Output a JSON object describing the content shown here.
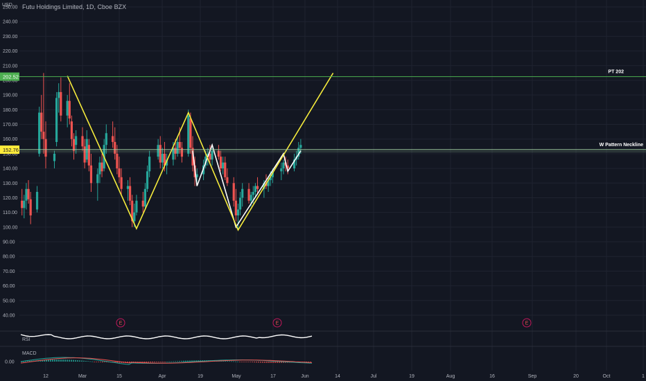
{
  "header": {
    "currency": "USD",
    "title": "Futu Holdings Limited, 1D, Cboe BZX"
  },
  "price_axis": {
    "ticks": [
      "250.00",
      "240.00",
      "230.00",
      "220.00",
      "210.00",
      "200.00",
      "190.00",
      "180.00",
      "170.00",
      "160.00",
      "150.00",
      "140.00",
      "130.00",
      "120.00",
      "110.00",
      "100.00",
      "90.00",
      "80.00",
      "70.00",
      "60.00",
      "50.00",
      "40.00"
    ],
    "tag_pt": "202.52",
    "tag_neckline": "152.76",
    "macd_tick": "0.00"
  },
  "time_axis": {
    "labels": [
      "12",
      "Mar",
      "15",
      "Apr",
      "19",
      "May",
      "17",
      "Jun",
      "14",
      "Jul",
      "19",
      "Aug",
      "16",
      "Sep",
      "20",
      "Oct",
      "1"
    ]
  },
  "annotations": {
    "pt_label": "PT 202",
    "neckline_label": "W Pattern Neckline",
    "earnings_marker": "E"
  },
  "indicators": {
    "rsi_label": "RSI",
    "macd_label": "MACD"
  },
  "colors": {
    "background": "#131722",
    "grid": "#1f2330",
    "up": "#26a69a",
    "down": "#ef5350",
    "pattern_yellow": "#f5eb3c",
    "pattern_white": "#ffffff",
    "pt_line": "#4caf50",
    "neckline_line": "#a5d6a7"
  },
  "chart_data": {
    "type": "candlestick",
    "symbol": "Futu Holdings Limited",
    "interval": "1D",
    "exchange": "Cboe BZX",
    "y_range": [
      35,
      252
    ],
    "price_target": 202.52,
    "neckline": 152.76,
    "w_pattern_points": [
      {
        "date": "2021-02-22",
        "price": 203
      },
      {
        "date": "2021-03-26",
        "price": 99
      },
      {
        "date": "2021-04-19",
        "price": 178
      },
      {
        "date": "2021-05-12",
        "price": 98
      },
      {
        "date": "2021-06-25",
        "price": 205
      }
    ],
    "inner_pattern_points": [
      {
        "date": "2021-04-21",
        "price": 152
      },
      {
        "date": "2021-04-23",
        "price": 128
      },
      {
        "date": "2021-04-30",
        "price": 156
      },
      {
        "date": "2021-05-11",
        "price": 100
      },
      {
        "date": "2021-06-02",
        "price": 150
      },
      {
        "date": "2021-06-04",
        "price": 138
      },
      {
        "date": "2021-06-10",
        "price": 152
      }
    ],
    "candles": [
      {
        "date": "2021-02-01",
        "o": 118,
        "h": 126,
        "l": 108,
        "c": 113
      },
      {
        "date": "2021-02-02",
        "o": 113,
        "h": 122,
        "l": 106,
        "c": 118
      },
      {
        "date": "2021-02-03",
        "o": 118,
        "h": 130,
        "l": 112,
        "c": 126
      },
      {
        "date": "2021-02-04",
        "o": 126,
        "h": 132,
        "l": 116,
        "c": 119
      },
      {
        "date": "2021-02-05",
        "o": 119,
        "h": 124,
        "l": 102,
        "c": 108
      },
      {
        "date": "2021-02-08",
        "o": 112,
        "h": 128,
        "l": 110,
        "c": 124
      },
      {
        "date": "2021-02-09",
        "o": 150,
        "h": 182,
        "l": 148,
        "c": 178
      },
      {
        "date": "2021-02-10",
        "o": 178,
        "h": 190,
        "l": 160,
        "c": 165
      },
      {
        "date": "2021-02-11",
        "o": 165,
        "h": 205,
        "l": 150,
        "c": 160
      },
      {
        "date": "2021-02-12",
        "o": 160,
        "h": 172,
        "l": 140,
        "c": 148
      },
      {
        "date": "2021-02-16",
        "o": 145,
        "h": 152,
        "l": 140,
        "c": 150
      },
      {
        "date": "2021-02-17",
        "o": 158,
        "h": 192,
        "l": 155,
        "c": 188
      },
      {
        "date": "2021-02-18",
        "o": 188,
        "h": 198,
        "l": 178,
        "c": 192
      },
      {
        "date": "2021-02-19",
        "o": 192,
        "h": 202,
        "l": 172,
        "c": 176
      },
      {
        "date": "2021-02-22",
        "o": 176,
        "h": 190,
        "l": 168,
        "c": 186
      },
      {
        "date": "2021-02-23",
        "o": 186,
        "h": 198,
        "l": 170,
        "c": 174
      },
      {
        "date": "2021-02-24",
        "o": 172,
        "h": 176,
        "l": 155,
        "c": 160
      },
      {
        "date": "2021-02-25",
        "o": 160,
        "h": 164,
        "l": 146,
        "c": 152
      },
      {
        "date": "2021-02-26",
        "o": 156,
        "h": 166,
        "l": 150,
        "c": 162
      },
      {
        "date": "2021-03-01",
        "o": 162,
        "h": 168,
        "l": 152,
        "c": 155
      },
      {
        "date": "2021-03-02",
        "o": 155,
        "h": 160,
        "l": 140,
        "c": 144
      },
      {
        "date": "2021-03-03",
        "o": 146,
        "h": 166,
        "l": 144,
        "c": 160
      },
      {
        "date": "2021-03-04",
        "o": 156,
        "h": 160,
        "l": 138,
        "c": 142
      },
      {
        "date": "2021-03-05",
        "o": 142,
        "h": 150,
        "l": 124,
        "c": 130
      },
      {
        "date": "2021-03-08",
        "o": 130,
        "h": 140,
        "l": 118,
        "c": 136
      },
      {
        "date": "2021-03-09",
        "o": 136,
        "h": 148,
        "l": 130,
        "c": 144
      },
      {
        "date": "2021-03-10",
        "o": 144,
        "h": 150,
        "l": 134,
        "c": 138
      },
      {
        "date": "2021-03-11",
        "o": 140,
        "h": 160,
        "l": 138,
        "c": 156
      },
      {
        "date": "2021-03-12",
        "o": 156,
        "h": 170,
        "l": 150,
        "c": 164
      },
      {
        "date": "2021-03-15",
        "o": 162,
        "h": 172,
        "l": 154,
        "c": 158
      },
      {
        "date": "2021-03-16",
        "o": 158,
        "h": 168,
        "l": 146,
        "c": 150
      },
      {
        "date": "2021-03-17",
        "o": 150,
        "h": 156,
        "l": 136,
        "c": 140
      },
      {
        "date": "2021-03-18",
        "o": 140,
        "h": 148,
        "l": 130,
        "c": 134
      },
      {
        "date": "2021-03-19",
        "o": 134,
        "h": 140,
        "l": 122,
        "c": 126
      },
      {
        "date": "2021-03-22",
        "o": 126,
        "h": 132,
        "l": 118,
        "c": 128
      },
      {
        "date": "2021-03-23",
        "o": 128,
        "h": 134,
        "l": 115,
        "c": 118
      },
      {
        "date": "2021-03-24",
        "o": 118,
        "h": 122,
        "l": 100,
        "c": 104
      },
      {
        "date": "2021-03-25",
        "o": 104,
        "h": 116,
        "l": 100,
        "c": 110
      },
      {
        "date": "2021-03-26",
        "o": 110,
        "h": 122,
        "l": 108,
        "c": 118
      },
      {
        "date": "2021-03-29",
        "o": 118,
        "h": 124,
        "l": 110,
        "c": 114
      },
      {
        "date": "2021-03-30",
        "o": 114,
        "h": 130,
        "l": 112,
        "c": 126
      },
      {
        "date": "2021-03-31",
        "o": 126,
        "h": 142,
        "l": 124,
        "c": 138
      },
      {
        "date": "2021-04-01",
        "o": 138,
        "h": 152,
        "l": 134,
        "c": 148
      },
      {
        "date": "2021-04-05",
        "o": 148,
        "h": 160,
        "l": 146,
        "c": 156
      },
      {
        "date": "2021-04-06",
        "o": 156,
        "h": 162,
        "l": 140,
        "c": 144
      },
      {
        "date": "2021-04-07",
        "o": 144,
        "h": 154,
        "l": 140,
        "c": 150
      },
      {
        "date": "2021-04-08",
        "o": 150,
        "h": 158,
        "l": 138,
        "c": 142
      },
      {
        "date": "2021-04-09",
        "o": 142,
        "h": 150,
        "l": 136,
        "c": 146
      },
      {
        "date": "2021-04-12",
        "o": 146,
        "h": 158,
        "l": 142,
        "c": 154
      },
      {
        "date": "2021-04-13",
        "o": 154,
        "h": 160,
        "l": 146,
        "c": 150
      },
      {
        "date": "2021-04-14",
        "o": 150,
        "h": 162,
        "l": 148,
        "c": 158
      },
      {
        "date": "2021-04-15",
        "o": 158,
        "h": 168,
        "l": 150,
        "c": 154
      },
      {
        "date": "2021-04-16",
        "o": 154,
        "h": 158,
        "l": 144,
        "c": 148
      },
      {
        "date": "2021-04-19",
        "o": 150,
        "h": 180,
        "l": 148,
        "c": 176
      },
      {
        "date": "2021-04-20",
        "o": 174,
        "h": 178,
        "l": 150,
        "c": 154
      },
      {
        "date": "2021-04-21",
        "o": 154,
        "h": 162,
        "l": 138,
        "c": 142
      },
      {
        "date": "2021-04-22",
        "o": 142,
        "h": 148,
        "l": 128,
        "c": 134
      },
      {
        "date": "2021-04-23",
        "o": 134,
        "h": 140,
        "l": 130,
        "c": 136
      },
      {
        "date": "2021-04-26",
        "o": 136,
        "h": 146,
        "l": 132,
        "c": 142
      },
      {
        "date": "2021-04-27",
        "o": 142,
        "h": 152,
        "l": 140,
        "c": 148
      },
      {
        "date": "2021-04-28",
        "o": 148,
        "h": 154,
        "l": 142,
        "c": 150
      },
      {
        "date": "2021-04-29",
        "o": 150,
        "h": 156,
        "l": 144,
        "c": 146
      },
      {
        "date": "2021-04-30",
        "o": 146,
        "h": 154,
        "l": 142,
        "c": 152
      },
      {
        "date": "2021-05-03",
        "o": 152,
        "h": 156,
        "l": 146,
        "c": 148
      },
      {
        "date": "2021-05-04",
        "o": 148,
        "h": 152,
        "l": 138,
        "c": 140
      },
      {
        "date": "2021-05-05",
        "o": 140,
        "h": 148,
        "l": 136,
        "c": 144
      },
      {
        "date": "2021-05-06",
        "o": 144,
        "h": 148,
        "l": 132,
        "c": 134
      },
      {
        "date": "2021-05-07",
        "o": 134,
        "h": 140,
        "l": 128,
        "c": 130
      },
      {
        "date": "2021-05-10",
        "o": 130,
        "h": 134,
        "l": 114,
        "c": 118
      },
      {
        "date": "2021-05-11",
        "o": 118,
        "h": 126,
        "l": 104,
        "c": 108
      },
      {
        "date": "2021-05-12",
        "o": 108,
        "h": 116,
        "l": 98,
        "c": 112
      },
      {
        "date": "2021-05-13",
        "o": 112,
        "h": 124,
        "l": 108,
        "c": 120
      },
      {
        "date": "2021-05-14",
        "o": 120,
        "h": 130,
        "l": 114,
        "c": 126
      },
      {
        "date": "2021-05-17",
        "o": 126,
        "h": 130,
        "l": 116,
        "c": 118
      },
      {
        "date": "2021-05-18",
        "o": 118,
        "h": 124,
        "l": 114,
        "c": 122
      },
      {
        "date": "2021-05-19",
        "o": 122,
        "h": 128,
        "l": 116,
        "c": 124
      },
      {
        "date": "2021-05-20",
        "o": 124,
        "h": 130,
        "l": 120,
        "c": 128
      },
      {
        "date": "2021-05-21",
        "o": 128,
        "h": 134,
        "l": 122,
        "c": 126
      },
      {
        "date": "2021-05-24",
        "o": 126,
        "h": 132,
        "l": 120,
        "c": 130
      },
      {
        "date": "2021-05-25",
        "o": 130,
        "h": 136,
        "l": 126,
        "c": 128
      },
      {
        "date": "2021-05-26",
        "o": 128,
        "h": 134,
        "l": 124,
        "c": 132
      },
      {
        "date": "2021-05-27",
        "o": 132,
        "h": 138,
        "l": 128,
        "c": 134
      },
      {
        "date": "2021-05-28",
        "o": 134,
        "h": 140,
        "l": 130,
        "c": 138
      },
      {
        "date": "2021-06-01",
        "o": 138,
        "h": 144,
        "l": 132,
        "c": 140
      },
      {
        "date": "2021-06-02",
        "o": 140,
        "h": 146,
        "l": 136,
        "c": 144
      },
      {
        "date": "2021-06-03",
        "o": 144,
        "h": 148,
        "l": 138,
        "c": 142
      },
      {
        "date": "2021-06-04",
        "o": 142,
        "h": 146,
        "l": 136,
        "c": 140
      },
      {
        "date": "2021-06-07",
        "o": 140,
        "h": 150,
        "l": 138,
        "c": 146
      },
      {
        "date": "2021-06-08",
        "o": 146,
        "h": 152,
        "l": 142,
        "c": 148
      },
      {
        "date": "2021-06-09",
        "o": 148,
        "h": 158,
        "l": 146,
        "c": 154
      },
      {
        "date": "2021-06-10",
        "o": 154,
        "h": 160,
        "l": 150,
        "c": 156
      }
    ]
  }
}
